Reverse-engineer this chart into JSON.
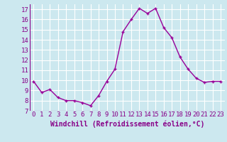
{
  "x": [
    0,
    1,
    2,
    3,
    4,
    5,
    6,
    7,
    8,
    9,
    10,
    11,
    12,
    13,
    14,
    15,
    16,
    17,
    18,
    19,
    20,
    21,
    22,
    23
  ],
  "y": [
    9.9,
    8.8,
    9.1,
    8.3,
    8.0,
    8.0,
    7.8,
    7.5,
    8.5,
    9.9,
    11.1,
    14.8,
    16.0,
    17.1,
    16.6,
    17.1,
    15.2,
    14.2,
    12.3,
    11.1,
    10.2,
    9.8,
    9.9,
    9.9
  ],
  "line_color": "#990099",
  "marker": "+",
  "marker_size": 3,
  "marker_linewidth": 1.0,
  "background_color": "#cce8ef",
  "grid_color": "#ffffff",
  "xlabel": "Windchill (Refroidissement éolien,°C)",
  "xlabel_fontsize": 7,
  "tick_color": "#880088",
  "tick_fontsize": 6.5,
  "ylim": [
    7,
    17.5
  ],
  "xlim": [
    -0.5,
    23.5
  ],
  "yticks": [
    7,
    8,
    9,
    10,
    11,
    12,
    13,
    14,
    15,
    16,
    17
  ],
  "xticks": [
    0,
    1,
    2,
    3,
    4,
    5,
    6,
    7,
    8,
    9,
    10,
    11,
    12,
    13,
    14,
    15,
    16,
    17,
    18,
    19,
    20,
    21,
    22,
    23
  ],
  "linewidth": 1.0
}
